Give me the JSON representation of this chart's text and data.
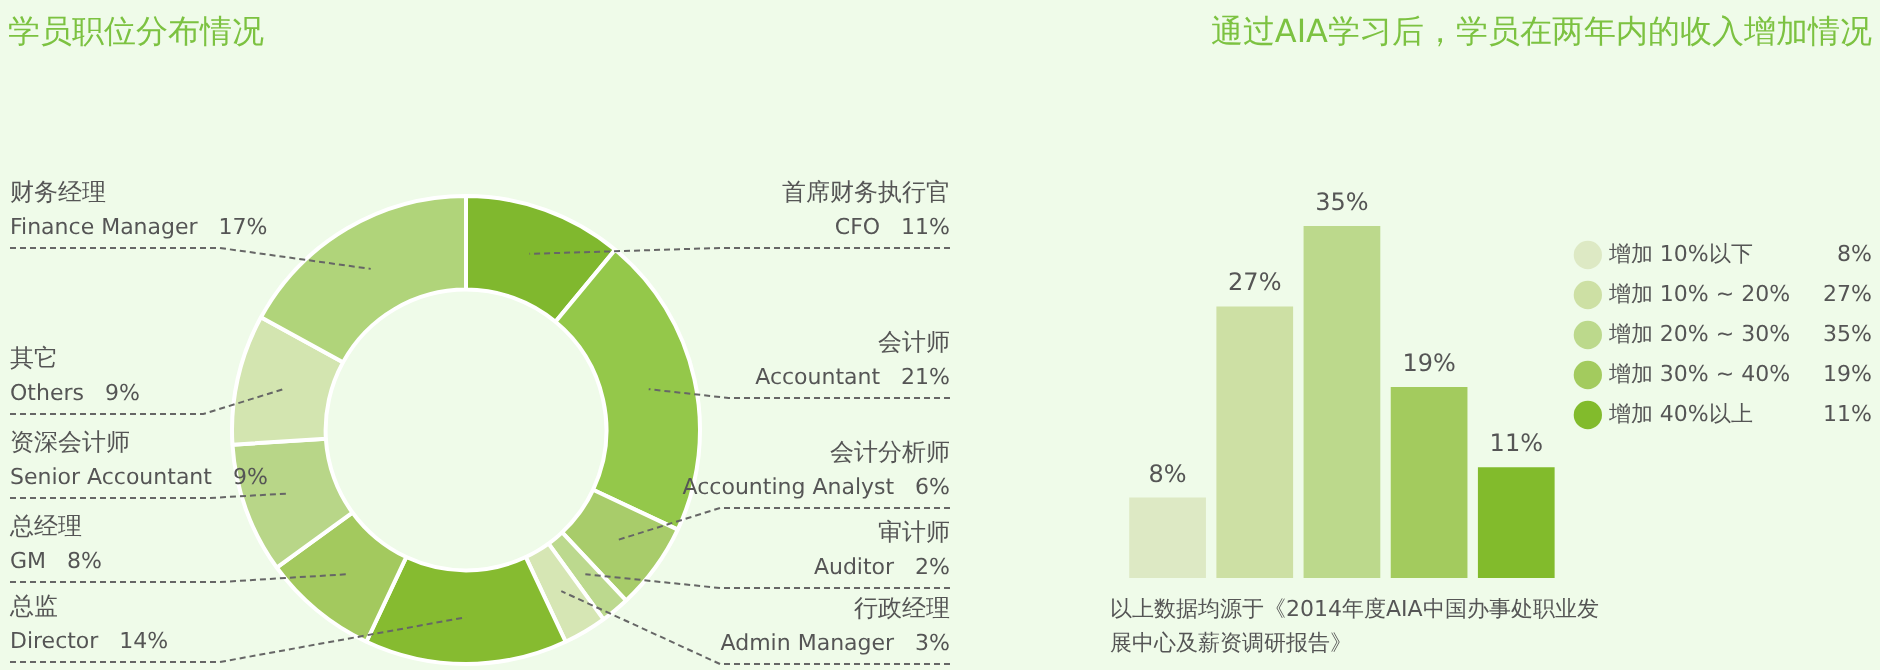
{
  "chart_data": [
    {
      "type": "donut",
      "title": "学员职位分布情况",
      "categories": [
        "首席财务执行官\nCFO",
        "会计师\nAccountant",
        "会计分析师\nAccounting Analyst",
        "审计师\nAuditor",
        "行政经理\nAdmin Manager",
        "总监\nDirector",
        "总经理\nGM",
        "资深会计师\nSenior Accountant",
        "其它\nOthers",
        "财务经理\nFinance Manager"
      ],
      "values": [
        11,
        21,
        6,
        2,
        3,
        14,
        8,
        9,
        9,
        17
      ],
      "value_labels": [
        "11%",
        "21%",
        "6%",
        "2%",
        "3%",
        "14%",
        "8%",
        "9%",
        "9%",
        "17%"
      ],
      "colors": [
        "#80b82e",
        "#94c84a",
        "#a8cc6a",
        "#bcd98e",
        "#d6e6b4",
        "#86bb30",
        "#a3c95e",
        "#b8d688",
        "#d3e5b0",
        "#b0d47a"
      ],
      "legend": false
    },
    {
      "type": "bar",
      "title": "通过AIA学习后，学员在两年内的收入增加情况",
      "categories": [
        null,
        null,
        null,
        null,
        null
      ],
      "stacked": true,
      "series": [
        {
          "name": "增加 10%以下",
          "color": "#dde9c4",
          "values": [
            8,
            null,
            null,
            null,
            null
          ],
          "value_labels": [
            "8%",
            null,
            null,
            null,
            null
          ]
        },
        {
          "name": "增加 10% ~ 20%",
          "color": "#cde0a4",
          "values": [
            null,
            27,
            null,
            null,
            null
          ],
          "value_labels": [
            null,
            "27%",
            null,
            null,
            null
          ]
        },
        {
          "name": "增加 20% ~ 30%",
          "color": "#bcd98c",
          "values": [
            null,
            null,
            35,
            null,
            null
          ],
          "value_labels": [
            null,
            null,
            "35%",
            null,
            null
          ]
        },
        {
          "name": "增加 30% ~ 40%",
          "color": "#a3cb5e",
          "values": [
            null,
            null,
            null,
            19,
            null
          ],
          "value_labels": [
            null,
            null,
            null,
            "19%",
            null
          ]
        },
        {
          "name": "增加 40%以上",
          "color": "#82bb2c",
          "values": [
            null,
            null,
            null,
            null,
            11
          ],
          "value_labels": [
            null,
            null,
            null,
            null,
            "11%"
          ]
        }
      ],
      "legend": "top right",
      "annotations": [
        "以上数据均源于《2014年度AIA中国办事处职业发展中心及薪资调研报告》"
      ]
    }
  ]
}
